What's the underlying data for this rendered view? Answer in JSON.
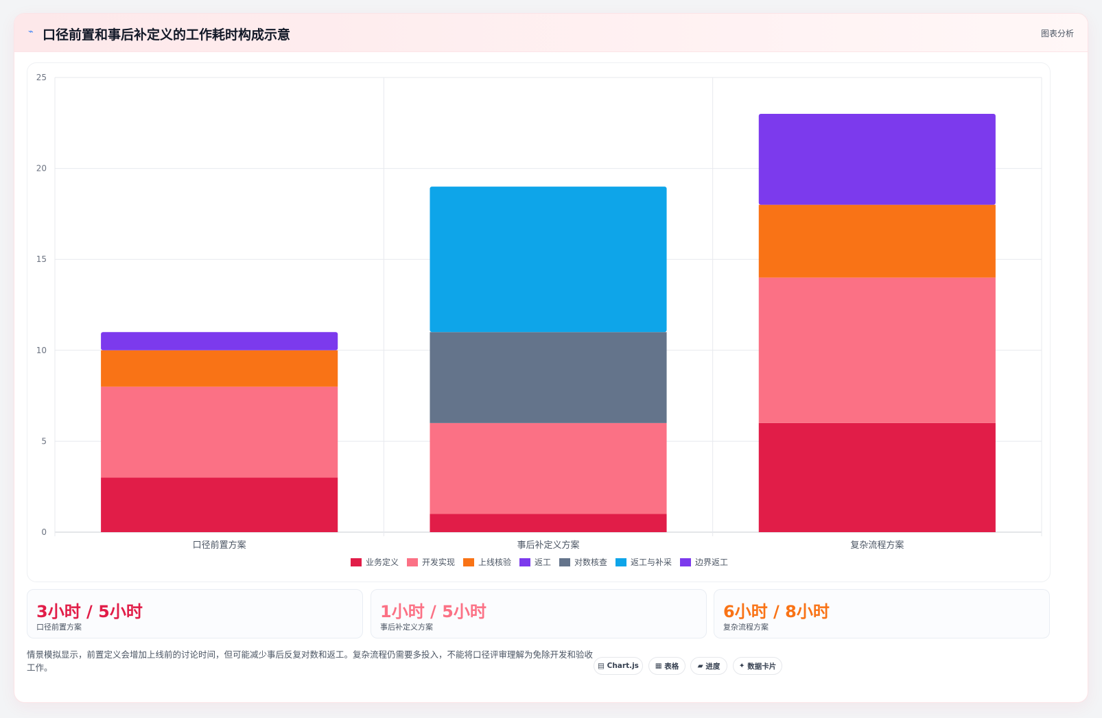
{
  "header": {
    "icon": "sparkline-icon",
    "title": "口径前置和事后补定义的工作耗时构成示意",
    "analysis_label": "图表分析"
  },
  "chart_data": {
    "type": "bar",
    "stacked": true,
    "categories": [
      "口径前置方案",
      "事后补定义方案",
      "复杂流程方案"
    ],
    "series": [
      {
        "name": "业务定义",
        "color": "#e11d48",
        "values": [
          3,
          1,
          6
        ]
      },
      {
        "name": "开发实现",
        "color": "#fb7185",
        "values": [
          5,
          5,
          8
        ]
      },
      {
        "name": "上线核验",
        "color": "#f97316",
        "values": [
          2,
          0,
          4
        ]
      },
      {
        "name": "返工",
        "color": "#7c3aed",
        "values": [
          1,
          0,
          0
        ]
      },
      {
        "name": "对数核查",
        "color": "#64748b",
        "values": [
          0,
          5,
          0
        ]
      },
      {
        "name": "返工与补采",
        "color": "#0ea5e9",
        "values": [
          0,
          8,
          0
        ]
      },
      {
        "name": "边界返工",
        "color": "#7c3aed",
        "values": [
          0,
          0,
          5
        ]
      }
    ],
    "ylim": [
      0,
      25
    ],
    "yticks": [
      0,
      5,
      10,
      15,
      20,
      25
    ],
    "grid": true,
    "legend": "bottom",
    "xlabel": "",
    "ylabel": ""
  },
  "stats": [
    {
      "value": "3小时 / 5小时",
      "label": "口径前置方案",
      "color": "#e11d48"
    },
    {
      "value": "1小时 / 5小时",
      "label": "事后补定义方案",
      "color": "#fb7185"
    },
    {
      "value": "6小时 / 8小时",
      "label": "复杂流程方案",
      "color": "#f97316"
    }
  ],
  "footnote": "情景模拟显示，前置定义会增加上线前的讨论时间，但可能减少事后反复对数和返工。复杂流程仍需要多投入，不能将口径评审理解为免除开发和验收工作。",
  "tags": [
    {
      "icon": "▤",
      "label": "Chart.js"
    },
    {
      "icon": "▦",
      "label": "表格"
    },
    {
      "icon": "▰",
      "label": "进度"
    },
    {
      "icon": "✦",
      "label": "数据卡片"
    }
  ]
}
